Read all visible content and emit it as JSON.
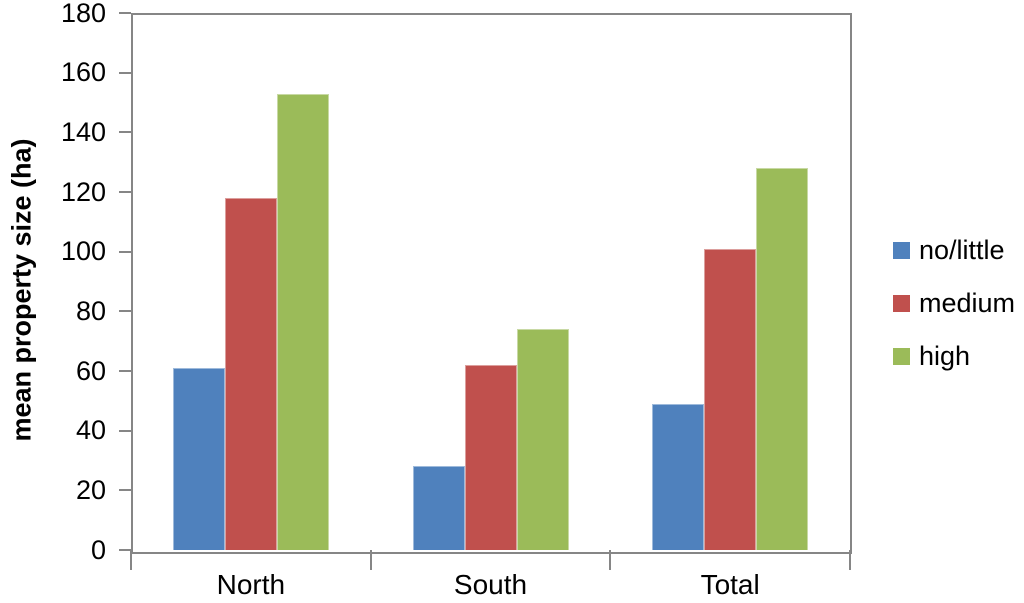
{
  "chart_data": {
    "type": "bar",
    "title": "",
    "xlabel": "",
    "ylabel": "mean property size (ha)",
    "categories": [
      "North",
      "South",
      "Total"
    ],
    "series": [
      {
        "name": "no/little",
        "color": "#4F81BD",
        "values": [
          61,
          28,
          49
        ]
      },
      {
        "name": "medium",
        "color": "#C0504D",
        "values": [
          118,
          62,
          101
        ]
      },
      {
        "name": "high",
        "color": "#9BBB59",
        "values": [
          153,
          74,
          128
        ]
      }
    ],
    "ylim": [
      0,
      180
    ],
    "yticks": [
      0,
      20,
      40,
      60,
      80,
      100,
      120,
      140,
      160,
      180
    ],
    "grid": false,
    "legend_position": "right",
    "axis_color": "#868686",
    "text_color": "#000000"
  }
}
